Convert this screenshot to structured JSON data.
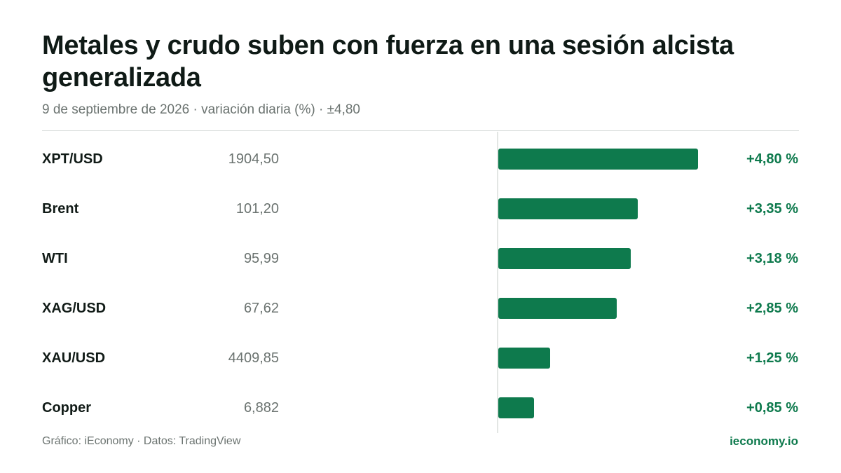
{
  "title": "Metales y crudo suben con fuerza en una sesión alcista generalizada",
  "subtitle": "9 de septiembre de 2026 · variación diaria (%) · ±4,80",
  "footer": {
    "source": "Gráfico: iEconomy · Datos: TradingView",
    "brand": "ieconomy.io"
  },
  "colors": {
    "bar": "#0e7a4d",
    "positive_text": "#0e7a4d",
    "brand": "#0e7a4d"
  },
  "chart_data": {
    "type": "bar",
    "orientation": "horizontal",
    "title": "Metales y crudo suben con fuerza en una sesión alcista generalizada",
    "subtitle": "9 de septiembre de 2026 · variación diaria (%) · ±4,80",
    "xlim": [
      -4.8,
      4.8
    ],
    "grid": false,
    "rows": [
      {
        "name": "XPT/USD",
        "price": "1904,50",
        "change": 4.8,
        "label": "+4,80 %"
      },
      {
        "name": "Brent",
        "price": "101,20",
        "change": 3.35,
        "label": "+3,35 %"
      },
      {
        "name": "WTI",
        "price": "95,99",
        "change": 3.18,
        "label": "+3,18 %"
      },
      {
        "name": "XAG/USD",
        "price": "67,62",
        "change": 2.85,
        "label": "+2,85 %"
      },
      {
        "name": "XAU/USD",
        "price": "4409,85",
        "change": 1.25,
        "label": "+1,25 %"
      },
      {
        "name": "Copper",
        "price": "6,882",
        "change": 0.85,
        "label": "+0,85 %"
      }
    ]
  }
}
